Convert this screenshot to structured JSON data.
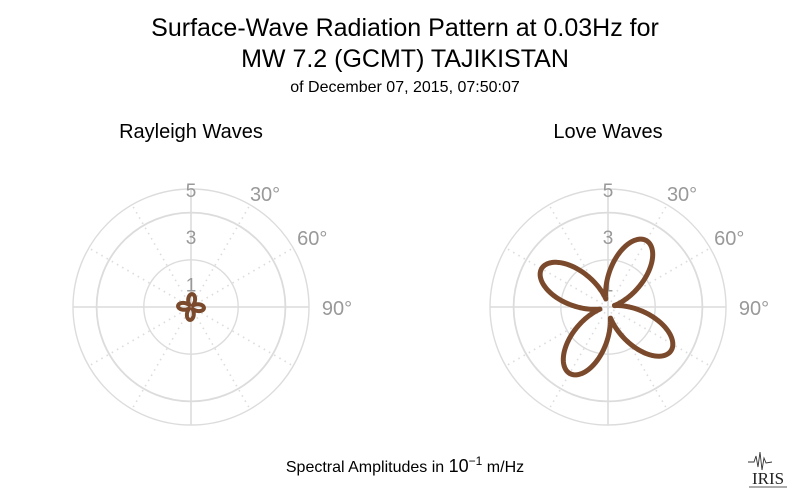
{
  "chart_data": {
    "type": "polar",
    "title_line1": "Surface-Wave Radiation Pattern at 0.03Hz for",
    "title_line2": "MW 7.2 (GCMT) TAJIKISTAN",
    "subtitle": "of December 07, 2015, 07:50:07",
    "footer": {
      "prefix": "Spectral Amplitudes in ",
      "base": "10",
      "exponent": "−1",
      "suffix": " m/Hz"
    },
    "logo_text": "IRIS",
    "colors": {
      "pattern": "#7b4a2c",
      "grid": "#dcdcdc",
      "axis_label": "#999999"
    },
    "radial_ticks": [
      1,
      3,
      5
    ],
    "radial_max": 5,
    "angle_labels": [
      "30°",
      "60°",
      "90°"
    ],
    "panels": [
      {
        "name": "Rayleigh Waves",
        "pattern": {
          "kind": "four-lobe",
          "peak_amplitude": 0.55,
          "lobe_azimuths_deg": [
            5,
            95,
            185,
            275
          ],
          "lobe_exponent": 1.2
        }
      },
      {
        "name": "Love Waves",
        "pattern": {
          "kind": "four-lobe",
          "peak_amplitude": 3.25,
          "lobe_azimuths_deg": [
            30,
            125,
            210,
            300
          ],
          "lobe_exponent": 1.6
        }
      }
    ]
  }
}
